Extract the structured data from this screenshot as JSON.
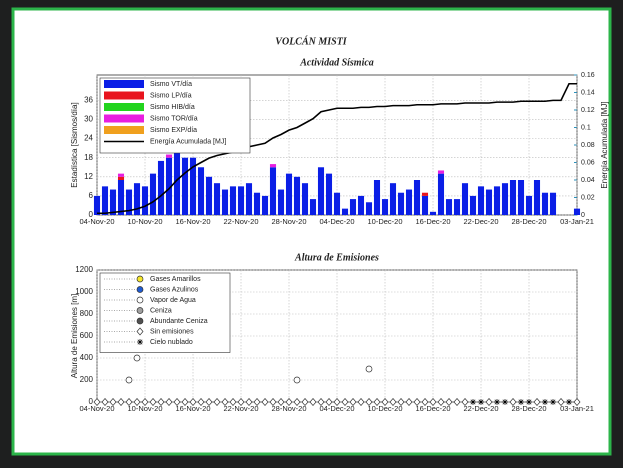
{
  "title": "VOLCÁN MISTI",
  "chart_data": [
    {
      "type": "bar",
      "title": "Actividad Sísmica",
      "ylabel": "Estadística [Sismos/día]",
      "y2label": "Energía Acumulada [MJ]",
      "categories": [
        "04-Nov-20",
        null,
        null,
        null,
        null,
        null,
        "10-Nov-20",
        null,
        null,
        null,
        null,
        null,
        "16-Nov-20",
        null,
        null,
        null,
        null,
        null,
        "22-Nov-20",
        null,
        null,
        null,
        null,
        null,
        "28-Nov-20",
        null,
        null,
        null,
        null,
        null,
        "04-Dec-20",
        null,
        null,
        null,
        null,
        null,
        "10-Dec-20",
        null,
        null,
        null,
        null,
        null,
        "16-Dec-20",
        null,
        null,
        null,
        null,
        null,
        "22-Dec-20",
        null,
        null,
        null,
        null,
        null,
        "28-Dec-20",
        null,
        null,
        null,
        null,
        null,
        "03-Jan-21"
      ],
      "ylim": [
        0,
        44
      ],
      "yticks": [
        0,
        6,
        12,
        18,
        24,
        30,
        36
      ],
      "y2lim": [
        0,
        0.16
      ],
      "y2ticks": [
        0,
        0.02,
        0.04,
        0.06,
        0.08,
        0.1,
        0.12,
        0.14,
        0.16
      ],
      "grid": true,
      "series": [
        {
          "name": "Sismo VT/día",
          "color": "#0a1ee6",
          "values": [
            6,
            9,
            8,
            11,
            8,
            10,
            9,
            13,
            17,
            18,
            20,
            18,
            18,
            15,
            12,
            10,
            8,
            9,
            9,
            10,
            7,
            6,
            15,
            8,
            13,
            12,
            10,
            5,
            15,
            13,
            7,
            2,
            5,
            6,
            4,
            11,
            5,
            10,
            7,
            8,
            11,
            6,
            1,
            13,
            5,
            5,
            10,
            6,
            9,
            8,
            9,
            10,
            11,
            11,
            6,
            11,
            7,
            7,
            0,
            0,
            2
          ]
        },
        {
          "name": "Sismo LP/día",
          "color": "#e8141e",
          "values": [
            0,
            0,
            0,
            1,
            0,
            0,
            0,
            0,
            0,
            0,
            0,
            0,
            0,
            0,
            0,
            0,
            0,
            0,
            0,
            0,
            0,
            0,
            0,
            0,
            0,
            0,
            0,
            0,
            0,
            0,
            0,
            0,
            0,
            0,
            0,
            0,
            0,
            0,
            0,
            0,
            0,
            1,
            0,
            0,
            0,
            0,
            0,
            0,
            0,
            0,
            0,
            0,
            0,
            0,
            0,
            0,
            0,
            0,
            0,
            0,
            0
          ]
        },
        {
          "name": "Sismo HIB/día",
          "color": "#22d41e",
          "values": [
            0,
            0,
            0,
            0,
            0,
            0,
            0,
            0,
            0,
            0,
            0,
            0,
            0,
            0,
            0,
            0,
            0,
            0,
            0,
            0,
            0,
            0,
            0,
            0,
            0,
            0,
            0,
            0,
            0,
            0,
            0,
            0,
            0,
            0,
            0,
            0,
            0,
            0,
            0,
            0,
            0,
            0,
            0,
            0,
            0,
            0,
            0,
            0,
            0,
            0,
            0,
            0,
            0,
            0,
            0,
            0,
            0,
            0,
            0,
            0,
            0
          ]
        },
        {
          "name": "Sismo TOR/día",
          "color": "#e81ee0",
          "values": [
            0,
            0,
            0,
            1,
            0,
            0,
            0,
            0,
            0,
            1,
            0,
            0,
            0,
            0,
            0,
            0,
            0,
            0,
            0,
            0,
            0,
            0,
            1,
            0,
            0,
            0,
            0,
            0,
            0,
            0,
            0,
            0,
            0,
            0,
            0,
            0,
            0,
            0,
            0,
            0,
            0,
            0,
            0,
            1,
            0,
            0,
            0,
            0,
            0,
            0,
            0,
            0,
            0,
            0,
            0,
            0,
            0,
            0,
            0,
            0,
            0
          ]
        },
        {
          "name": "Sismo EXP/día",
          "color": "#f0a01e",
          "values": [
            0,
            0,
            0,
            0,
            0,
            0,
            0,
            0,
            0,
            0,
            0,
            0,
            0,
            0,
            0,
            0,
            0,
            0,
            0,
            0,
            0,
            0,
            0,
            0,
            0,
            0,
            0,
            0,
            0,
            0,
            0,
            0,
            0,
            0,
            0,
            0,
            0,
            0,
            0,
            0,
            0,
            0,
            0,
            0,
            0,
            0,
            0,
            0,
            0,
            0,
            0,
            0,
            0,
            0,
            0,
            0,
            0,
            0,
            0,
            0,
            0
          ]
        },
        {
          "name": "Energía Acumulada [MJ]",
          "color": "#000000",
          "type": "line",
          "axis": "y2",
          "values": [
            0.002,
            0.002,
            0.003,
            0.004,
            0.005,
            0.007,
            0.01,
            0.015,
            0.022,
            0.03,
            0.04,
            0.048,
            0.055,
            0.06,
            0.065,
            0.068,
            0.07,
            0.072,
            0.075,
            0.078,
            0.08,
            0.082,
            0.088,
            0.092,
            0.097,
            0.1,
            0.105,
            0.11,
            0.118,
            0.12,
            0.122,
            0.122,
            0.122,
            0.123,
            0.123,
            0.124,
            0.124,
            0.125,
            0.125,
            0.125,
            0.126,
            0.126,
            0.126,
            0.127,
            0.127,
            0.127,
            0.128,
            0.128,
            0.128,
            0.128,
            0.129,
            0.129,
            0.129,
            0.13,
            0.13,
            0.13,
            0.13,
            0.131,
            0.131,
            0.15,
            0.15
          ]
        }
      ]
    },
    {
      "type": "scatter",
      "title": "Altura de Emisiones",
      "ylabel": "Altura de Emisiones [m]",
      "categories": [
        "04-Nov-20",
        null,
        null,
        null,
        null,
        null,
        "10-Nov-20",
        null,
        null,
        null,
        null,
        null,
        "16-Nov-20",
        null,
        null,
        null,
        null,
        null,
        "22-Nov-20",
        null,
        null,
        null,
        null,
        null,
        "28-Nov-20",
        null,
        null,
        null,
        null,
        null,
        "04-Dec-20",
        null,
        null,
        null,
        null,
        null,
        "10-Dec-20",
        null,
        null,
        null,
        null,
        null,
        "16-Dec-20",
        null,
        null,
        null,
        null,
        null,
        "22-Dec-20",
        null,
        null,
        null,
        null,
        null,
        "28-Dec-20",
        null,
        null,
        null,
        null,
        null,
        "03-Jan-21"
      ],
      "ylim": [
        0,
        1200
      ],
      "yticks": [
        0,
        200,
        400,
        600,
        800,
        1000,
        1200
      ],
      "grid": true,
      "series": [
        {
          "name": "Gases Amarillos",
          "color": "#f5e62a",
          "marker": "circle",
          "values": [
            null,
            null,
            null,
            null,
            null,
            null,
            null,
            null,
            null,
            null,
            null,
            null,
            null,
            null,
            null,
            null,
            null,
            null,
            null,
            null,
            null,
            null,
            null,
            null,
            null,
            null,
            null,
            null,
            null,
            null,
            null,
            null,
            null,
            null,
            null,
            null,
            null,
            null,
            null,
            null,
            null,
            null,
            null,
            null,
            null,
            null,
            null,
            null,
            null,
            null,
            null,
            null,
            null,
            null,
            null,
            null,
            null,
            null,
            null,
            null,
            null
          ]
        },
        {
          "name": "Gases Azulinos",
          "color": "#1e5ad2",
          "marker": "circle",
          "values": [
            null,
            null,
            null,
            null,
            null,
            null,
            null,
            null,
            null,
            null,
            null,
            null,
            null,
            null,
            null,
            null,
            null,
            null,
            null,
            null,
            null,
            null,
            null,
            null,
            null,
            null,
            null,
            null,
            null,
            null,
            null,
            null,
            null,
            null,
            null,
            null,
            null,
            null,
            null,
            null,
            null,
            null,
            null,
            null,
            null,
            null,
            null,
            null,
            null,
            null,
            null,
            null,
            null,
            null,
            null,
            null,
            null,
            null,
            null,
            null,
            null
          ]
        },
        {
          "name": "Vapor de Agua",
          "color": "#ffffff",
          "marker": "circle",
          "values": [
            null,
            null,
            null,
            null,
            200,
            400,
            null,
            null,
            null,
            null,
            null,
            null,
            null,
            null,
            null,
            null,
            null,
            null,
            null,
            null,
            null,
            null,
            null,
            null,
            null,
            200,
            null,
            null,
            null,
            null,
            null,
            null,
            null,
            null,
            300,
            null,
            null,
            null,
            null,
            null,
            null,
            null,
            null,
            null,
            null,
            null,
            null,
            null,
            null,
            null,
            null,
            null,
            null,
            null,
            null,
            null,
            null,
            null,
            null,
            null,
            null
          ]
        },
        {
          "name": "Ceniza",
          "color": "#a0a0a0",
          "marker": "circle",
          "values": [
            null,
            null,
            null,
            null,
            null,
            null,
            null,
            null,
            null,
            null,
            null,
            null,
            null,
            null,
            null,
            null,
            null,
            null,
            null,
            null,
            null,
            null,
            null,
            null,
            null,
            null,
            null,
            null,
            null,
            null,
            null,
            null,
            null,
            null,
            null,
            null,
            null,
            null,
            null,
            null,
            null,
            null,
            null,
            null,
            null,
            null,
            null,
            null,
            null,
            null,
            null,
            null,
            null,
            null,
            null,
            null,
            null,
            null,
            null,
            null,
            null
          ]
        },
        {
          "name": "Abundante Ceniza",
          "color": "#505050",
          "marker": "circle",
          "values": [
            null,
            null,
            null,
            null,
            null,
            null,
            null,
            null,
            null,
            null,
            null,
            null,
            null,
            null,
            null,
            null,
            null,
            null,
            null,
            null,
            null,
            null,
            null,
            null,
            null,
            null,
            null,
            null,
            null,
            null,
            null,
            null,
            null,
            null,
            null,
            null,
            null,
            null,
            null,
            null,
            null,
            null,
            null,
            null,
            null,
            null,
            null,
            null,
            null,
            null,
            null,
            null,
            null,
            null,
            null,
            null,
            null,
            null,
            null,
            null,
            null
          ]
        },
        {
          "name": "Sin emisiones",
          "color": "#ffffff",
          "marker": "diamond",
          "values": [
            0,
            0,
            0,
            0,
            0,
            0,
            0,
            0,
            0,
            0,
            0,
            0,
            0,
            0,
            0,
            0,
            0,
            0,
            0,
            0,
            0,
            0,
            0,
            0,
            0,
            0,
            0,
            0,
            0,
            0,
            0,
            0,
            0,
            0,
            0,
            0,
            0,
            0,
            0,
            0,
            0,
            0,
            0,
            0,
            0,
            0,
            0,
            null,
            null,
            0,
            null,
            null,
            0,
            null,
            null,
            0,
            null,
            null,
            0,
            null,
            0
          ]
        },
        {
          "name": "Cielo nublado",
          "color": "#000000",
          "marker": "star",
          "values": [
            null,
            null,
            null,
            null,
            null,
            null,
            null,
            null,
            null,
            null,
            null,
            null,
            null,
            null,
            null,
            null,
            null,
            null,
            null,
            null,
            null,
            null,
            null,
            null,
            null,
            null,
            null,
            null,
            null,
            null,
            null,
            null,
            null,
            null,
            null,
            null,
            null,
            null,
            null,
            null,
            null,
            null,
            null,
            null,
            null,
            null,
            null,
            0,
            0,
            null,
            0,
            0,
            null,
            0,
            0,
            null,
            0,
            0,
            null,
            0,
            null
          ]
        }
      ]
    }
  ]
}
